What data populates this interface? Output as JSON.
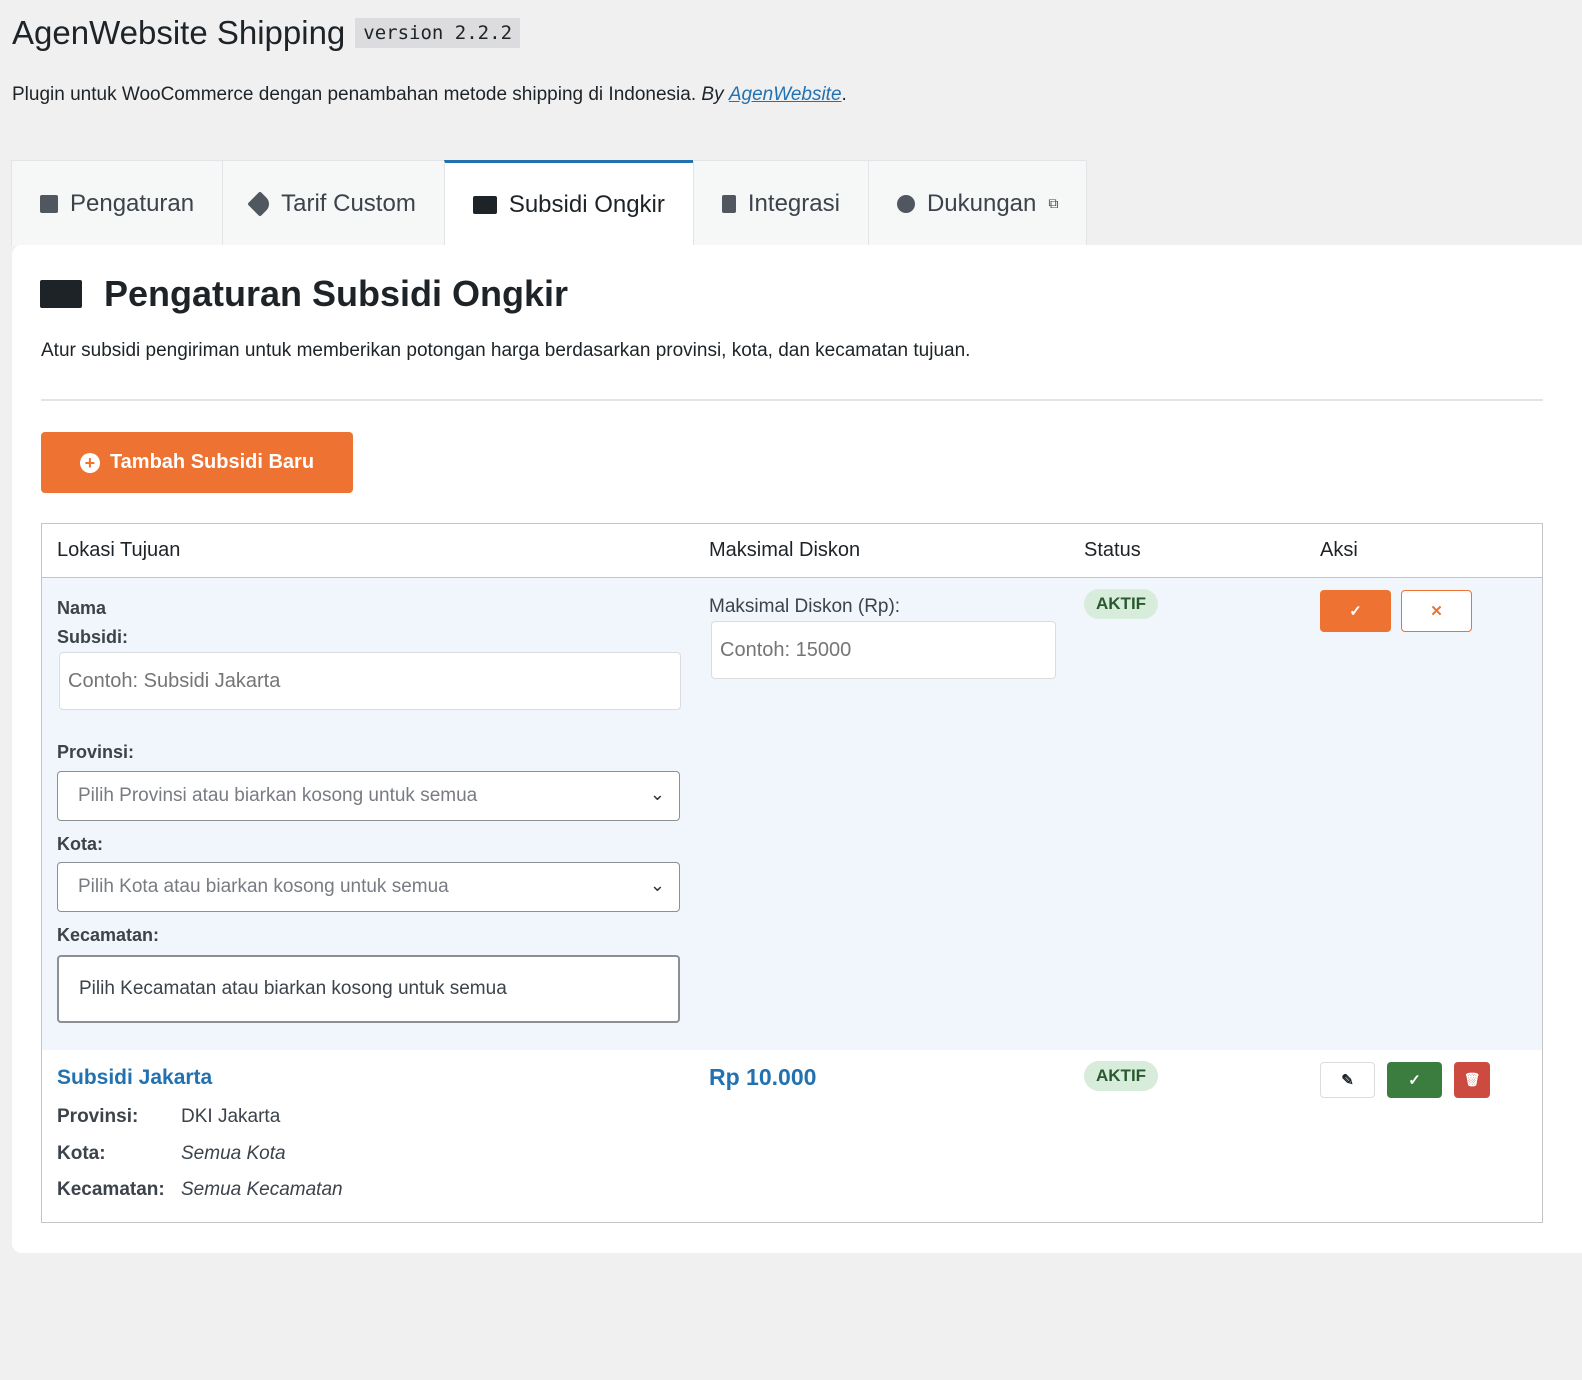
{
  "header": {
    "title": "AgenWebsite Shipping",
    "version": "version 2.2.2",
    "description": "Plugin untuk WooCommerce dengan penambahan metode shipping di Indonesia.",
    "by": "By",
    "author_link": "AgenWebsite",
    "period": "."
  },
  "tabs": [
    {
      "label": "Pengaturan",
      "icon": "sliders-icon"
    },
    {
      "label": "Tarif Custom",
      "icon": "tag-icon"
    },
    {
      "label": "Subsidi Ongkir",
      "icon": "subsidy-icon",
      "active": true
    },
    {
      "label": "Integrasi",
      "icon": "plug-icon"
    },
    {
      "label": "Dukungan",
      "icon": "lifebuoy-icon",
      "external": true
    }
  ],
  "page": {
    "title": "Pengaturan Subsidi Ongkir",
    "subtitle": "Atur subsidi pengiriman untuk memberikan potongan harga berdasarkan provinsi, kota, dan kecamatan tujuan.",
    "add_button": "Tambah Subsidi Baru"
  },
  "table": {
    "headers": [
      "Lokasi Tujuan",
      "Maksimal Diskon",
      "Status",
      "Aksi"
    ],
    "edit_row": {
      "name_label": "Nama Subsidi:",
      "name_placeholder": "Contoh: Subsidi Jakarta",
      "prov_label": "Provinsi:",
      "prov_placeholder": "Pilih Provinsi atau biarkan kosong untuk semua",
      "city_label": "Kota:",
      "city_placeholder": "Pilih Kota atau biarkan kosong untuk semua",
      "district_label": "Kecamatan:",
      "district_placeholder": "Pilih Kecamatan atau biarkan kosong untuk semua",
      "discount_label": "Maksimal Diskon (Rp):",
      "discount_placeholder": "Contoh: 15000",
      "status": "AKTIF",
      "save": "✓",
      "cancel": "✕"
    },
    "rows": [
      {
        "name": "Subsidi Jakarta",
        "prov_label": "Provinsi:",
        "prov": "DKI Jakarta",
        "city_label": "Kota:",
        "city": "Semua Kota",
        "district_label": "Kecamatan:",
        "district": "Semua Kecamatan",
        "discount": "Rp 10.000",
        "status": "AKTIF",
        "edit": "✎",
        "toggle": "✓",
        "delete": "🗑"
      }
    ]
  },
  "colors": {
    "accent": "#ee7231",
    "active_tab": "#2271b1",
    "link": "#2271b1",
    "badge_bg": "#d7ecda",
    "success": "#3a7d3f",
    "danger": "#cc4a3f"
  }
}
